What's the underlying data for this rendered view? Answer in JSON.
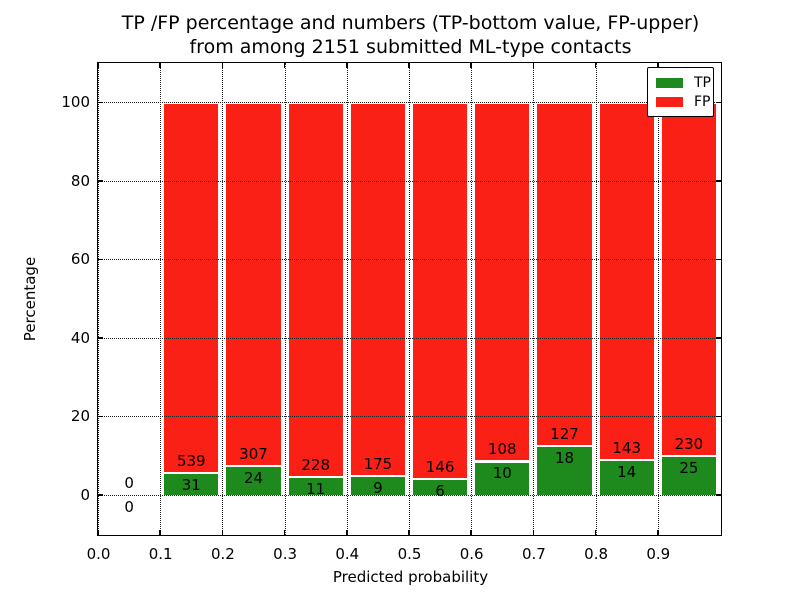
{
  "figure": {
    "title_line1": "TP /FP percentage and numbers (TP-bottom value, FP-upper)",
    "title_line2": "from among 2151 submitted ML-type contacts",
    "xlabel": "Predicted probability",
    "ylabel": "Percentage",
    "background_color": "#ffffff",
    "grid_color": "#222222"
  },
  "legend": {
    "position": "upper right",
    "items": [
      {
        "label": "TP",
        "color": "#1e8a1e"
      },
      {
        "label": "FP",
        "color": "#fb2015"
      }
    ]
  },
  "chart_data": {
    "type": "bar",
    "stacked": true,
    "normalized_to_percent": true,
    "title": "TP /FP percentage and numbers (TP-bottom value, FP-upper) from among 2151 submitted ML-type contacts",
    "xlabel": "Predicted probability",
    "ylabel": "Percentage",
    "xlim": [
      0.0,
      1.0
    ],
    "ylim": [
      -10,
      110
    ],
    "x_tick_labels": [
      "0.0",
      "0.1",
      "0.2",
      "0.3",
      "0.4",
      "0.5",
      "0.6",
      "0.7",
      "0.8",
      "0.9"
    ],
    "y_ticks": [
      0,
      20,
      40,
      60,
      80,
      100
    ],
    "grid": true,
    "bin_width": 0.1,
    "bar_edge_color": "#ffffff",
    "bins": [
      {
        "x_start": 0.0,
        "tp": 0,
        "fp": 0
      },
      {
        "x_start": 0.1,
        "tp": 31,
        "fp": 539
      },
      {
        "x_start": 0.2,
        "tp": 24,
        "fp": 307
      },
      {
        "x_start": 0.3,
        "tp": 11,
        "fp": 228
      },
      {
        "x_start": 0.4,
        "tp": 9,
        "fp": 175
      },
      {
        "x_start": 0.5,
        "tp": 6,
        "fp": 146
      },
      {
        "x_start": 0.6,
        "tp": 10,
        "fp": 108
      },
      {
        "x_start": 0.7,
        "tp": 18,
        "fp": 127
      },
      {
        "x_start": 0.8,
        "tp": 14,
        "fp": 143
      },
      {
        "x_start": 0.9,
        "tp": 25,
        "fp": 230
      }
    ],
    "series": [
      {
        "name": "TP",
        "color": "#1e8a1e",
        "counts": [
          0,
          31,
          24,
          11,
          9,
          6,
          10,
          18,
          14,
          25
        ]
      },
      {
        "name": "FP",
        "color": "#fb2015",
        "counts": [
          0,
          539,
          307,
          228,
          175,
          146,
          108,
          127,
          143,
          230
        ]
      }
    ],
    "total_contacts": 2151
  }
}
